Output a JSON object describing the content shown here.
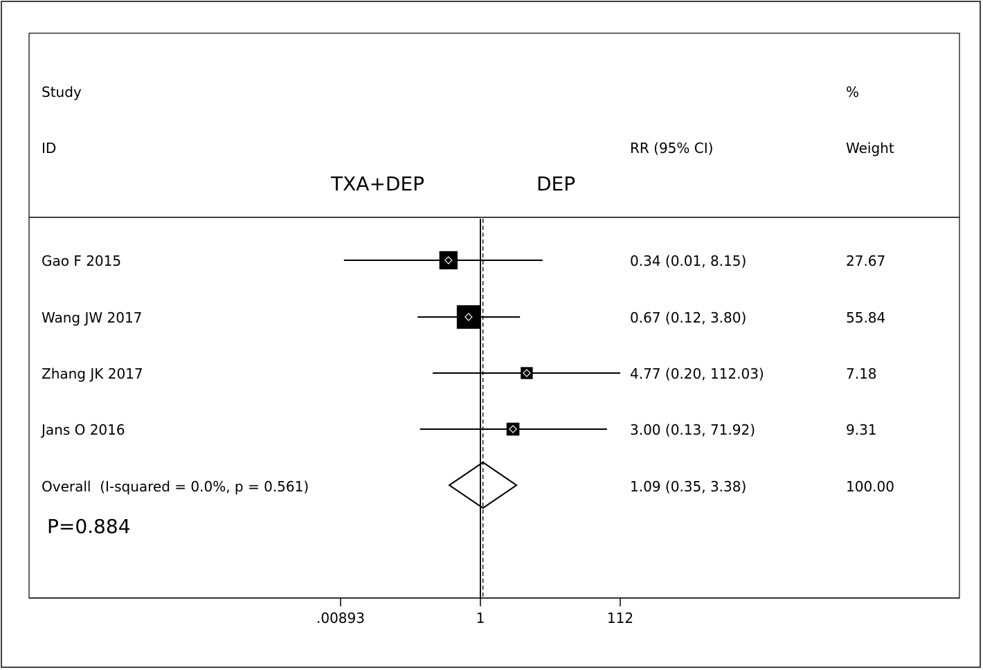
{
  "chart_data": {
    "type": "forest",
    "header": {
      "study_line1": "Study",
      "study_line2": "ID",
      "effect_label": "RR (95% CI)",
      "weight_line1": "%",
      "weight_line2": "Weight"
    },
    "favours": {
      "left": "TXA+DEP",
      "right": "DEP"
    },
    "studies": [
      {
        "id": "Gao F 2015",
        "rr": 0.34,
        "lower": 0.01,
        "upper": 8.15,
        "ci_text": "0.34 (0.01, 8.15)",
        "weight": 27.67,
        "weight_text": "27.67"
      },
      {
        "id": "Wang JW 2017",
        "rr": 0.67,
        "lower": 0.12,
        "upper": 3.8,
        "ci_text": "0.67 (0.12, 3.80)",
        "weight": 55.84,
        "weight_text": "55.84"
      },
      {
        "id": "Zhang JK 2017",
        "rr": 4.77,
        "lower": 0.2,
        "upper": 112.03,
        "ci_text": "4.77 (0.20, 112.03)",
        "weight": 7.18,
        "weight_text": "7.18"
      },
      {
        "id": "Jans O 2016",
        "rr": 3.0,
        "lower": 0.13,
        "upper": 71.92,
        "ci_text": "3.00 (0.13, 71.92)",
        "weight": 9.31,
        "weight_text": "9.31"
      }
    ],
    "overall": {
      "label": "Overall  (I-squared = 0.0%, p = 0.561)",
      "rr": 1.09,
      "lower": 0.35,
      "upper": 3.38,
      "ci_text": "1.09 (0.35, 3.38)",
      "weight_text": "100.00"
    },
    "p_value_text": "P=0.884",
    "x_axis": {
      "scale": "log",
      "range": [
        0.00893,
        112
      ],
      "ticks": [
        {
          "value": 0.00893,
          "label": ".00893"
        },
        {
          "value": 1,
          "label": "1"
        },
        {
          "value": 112,
          "label": "112"
        }
      ]
    }
  }
}
